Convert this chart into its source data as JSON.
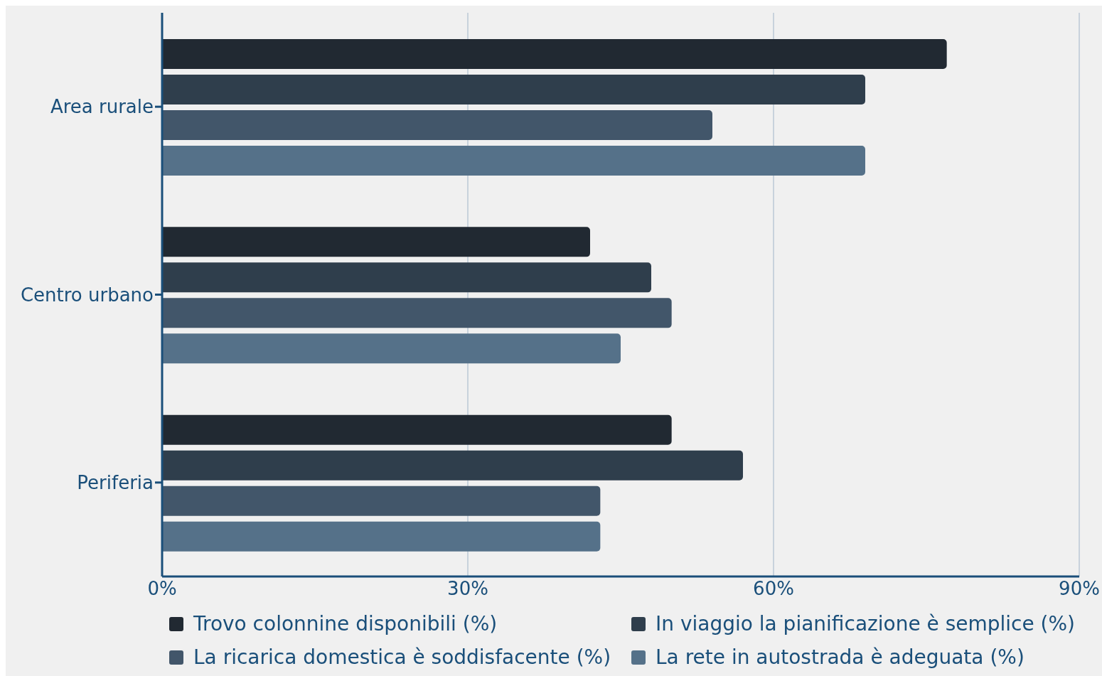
{
  "chart_data": {
    "type": "bar",
    "orientation": "horizontal",
    "categories": [
      "Area rurale",
      "Centro urbano",
      "Periferia"
    ],
    "series": [
      {
        "name": "Trovo colonnine disponibili (%)",
        "color": "#212932",
        "values": [
          77,
          42,
          50
        ]
      },
      {
        "name": "In viaggio la pianificazione è semplice (%)",
        "color": "#2f3e4c",
        "values": [
          69,
          48,
          57
        ]
      },
      {
        "name": "La ricarica domestica è soddisfacente (%)",
        "color": "#42566a",
        "values": [
          54,
          50,
          43
        ]
      },
      {
        "name": "La rete in autostrada è adeguata (%)",
        "color": "#557189",
        "values": [
          69,
          45,
          43
        ]
      }
    ],
    "xlim": [
      0,
      90
    ],
    "xticks": [
      {
        "value": 0,
        "label": "0%"
      },
      {
        "value": 30,
        "label": "30%"
      },
      {
        "value": 60,
        "label": "60%"
      },
      {
        "value": 90,
        "label": "90%"
      }
    ],
    "grid": "x",
    "legend": "bottom"
  }
}
